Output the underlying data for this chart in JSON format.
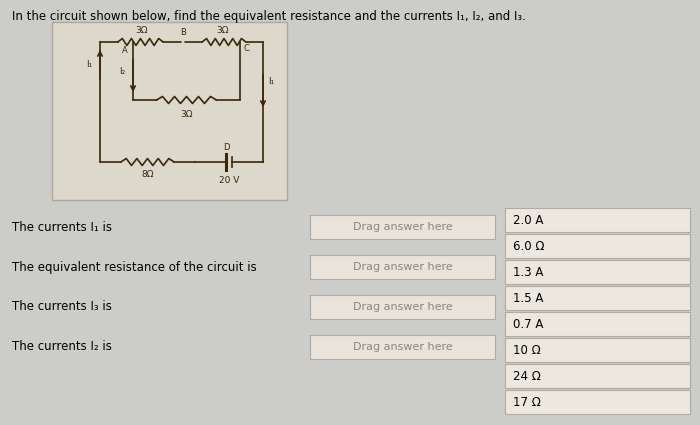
{
  "title": "In the circuit shown below, find the equivalent resistance and the currents I₁, I₂, and I₃.",
  "background_color": "#ccccc8",
  "circuit_bg": "#ddd8cc",
  "circuit_border": "#b0a898",
  "circuit_line_color": "#3a2808",
  "questions": [
    "The currents I₁ is",
    "The equivalent resistance of the circuit is",
    "The currents I₃ is",
    "The currents I₂ is"
  ],
  "drag_label": "Drag answer here",
  "answers": [
    "2.0 A",
    "6.0 Ω",
    "1.3 A",
    "1.5 A",
    "0.7 A",
    "10 Ω",
    "24 Ω",
    "17 Ω"
  ],
  "drag_box_color": "#e8e4dc",
  "drag_box_border": "#b0aaa0",
  "answer_box_color": "#ece8e0",
  "answer_box_border": "#b0aaa0",
  "title_fontsize": 8.5,
  "label_fontsize": 8.5,
  "answer_fontsize": 8.5,
  "drag_fontsize": 8.0
}
